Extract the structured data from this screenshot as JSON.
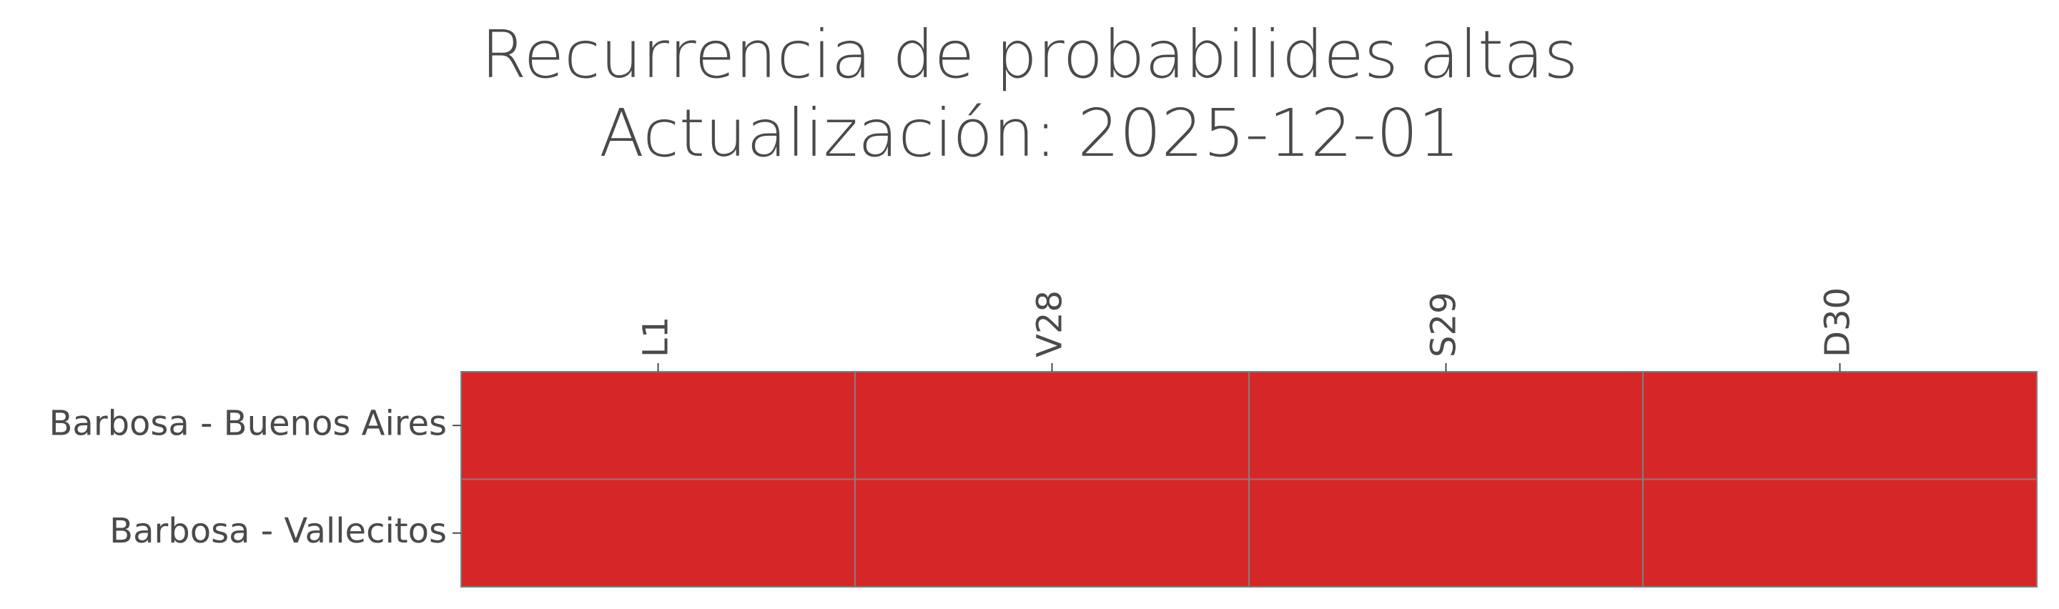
{
  "chart_data": {
    "type": "heatmap",
    "title": "Recurrencia de probabilides altas",
    "subtitle": "Actualización: 2025-12-01",
    "x_categories": [
      "L1",
      "V28",
      "S29",
      "D30"
    ],
    "y_categories": [
      "Barbosa - Buenos Aires",
      "Barbosa - Vallecitos"
    ],
    "values": [
      [
        1,
        1,
        1,
        1
      ],
      [
        1,
        1,
        1,
        1
      ]
    ],
    "color": "#d62728"
  }
}
